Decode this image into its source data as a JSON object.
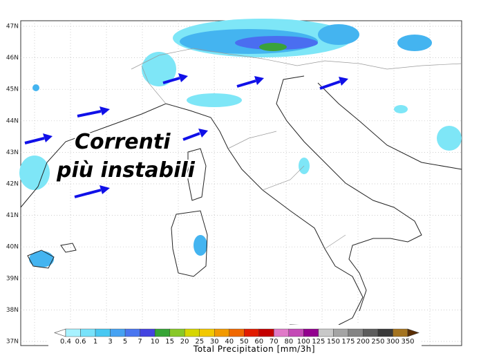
{
  "map": {
    "lat_labels": [
      "47N",
      "46N",
      "45N",
      "44N",
      "43N",
      "42N",
      "41N",
      "40N",
      "39N",
      "38N",
      "37N"
    ],
    "annotation": [
      "Correnti",
      "più instabili"
    ],
    "colorbar": {
      "title": "Total Precipitation [mm/3h]",
      "ticks": [
        0.4,
        0.6,
        1,
        3,
        5,
        7,
        10,
        15,
        20,
        25,
        30,
        40,
        50,
        60,
        70,
        80,
        100,
        125,
        150,
        175,
        200,
        250,
        300,
        350
      ],
      "colors": [
        "#ffffff",
        "#a8f2ff",
        "#78e2fa",
        "#48c8f2",
        "#46a2f2",
        "#4a76f0",
        "#4444e0",
        "#36a436",
        "#88c828",
        "#d6d600",
        "#f2c800",
        "#f29a00",
        "#f06800",
        "#e21c00",
        "#c40000",
        "#e07ac8",
        "#c44ab6",
        "#92008e",
        "#c8c8c8",
        "#a4a4a4",
        "#848484",
        "#5c5c5c",
        "#3a3a3a",
        "#a47420",
        "#7e4c12",
        "#5a2e04"
      ]
    }
  }
}
